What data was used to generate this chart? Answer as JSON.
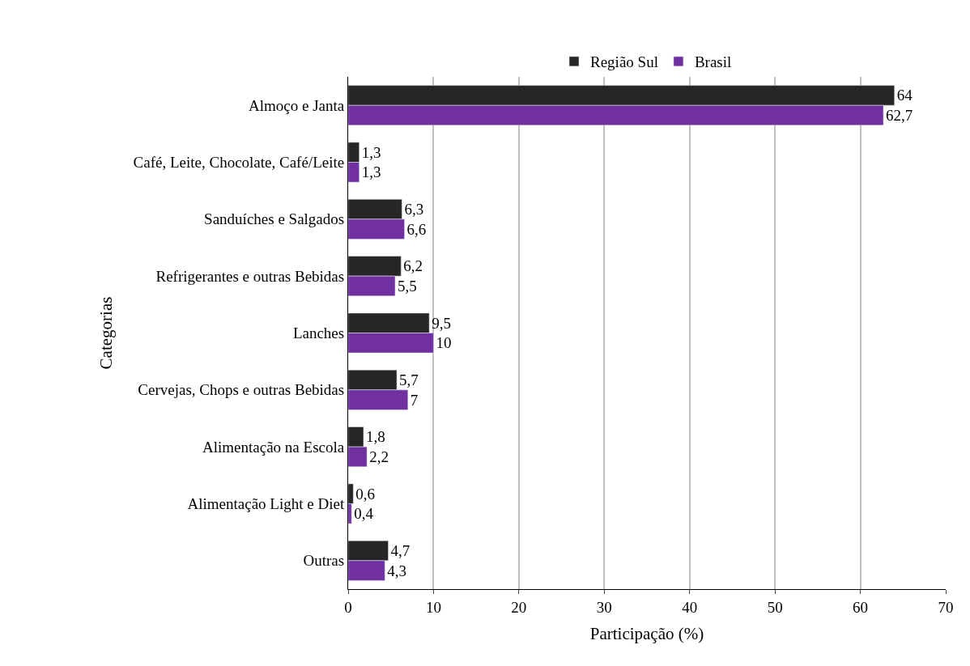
{
  "chart_data": {
    "type": "bar",
    "orientation": "horizontal",
    "xlabel": "Participação (%)",
    "ylabel": "Categorias",
    "categories": [
      "Almoço e Janta",
      "Café, Leite, Chocolate, Café/Leite",
      "Sanduíches e Salgados",
      "Refrigerantes e outras Bebidas",
      "Lanches",
      "Cervejas, Chops e outras Bebidas",
      "Alimentação na Escola",
      "Alimentação Light e Diet",
      "Outras"
    ],
    "series": [
      {
        "name": "Região Sul",
        "color": "#262626",
        "values": [
          64,
          1.3,
          6.3,
          6.2,
          9.5,
          5.7,
          1.8,
          0.6,
          4.7
        ],
        "value_labels": [
          "64",
          "1,3",
          "6,3",
          "6,2",
          "9,5",
          "5,7",
          "1,8",
          "0,6",
          "4,7"
        ]
      },
      {
        "name": "Brasil",
        "color": "#7030a0",
        "values": [
          62.7,
          1.3,
          6.6,
          5.5,
          10,
          7,
          2.2,
          0.4,
          4.3
        ],
        "value_labels": [
          "62,7",
          "1,3",
          "6,6",
          "5,5",
          "10",
          "7",
          "2,2",
          "0,4",
          "4,3"
        ]
      }
    ],
    "xlim": [
      0,
      70
    ],
    "xticks": [
      0,
      10,
      20,
      30,
      40,
      50,
      60,
      70
    ],
    "grid": "x",
    "legend": "top"
  }
}
